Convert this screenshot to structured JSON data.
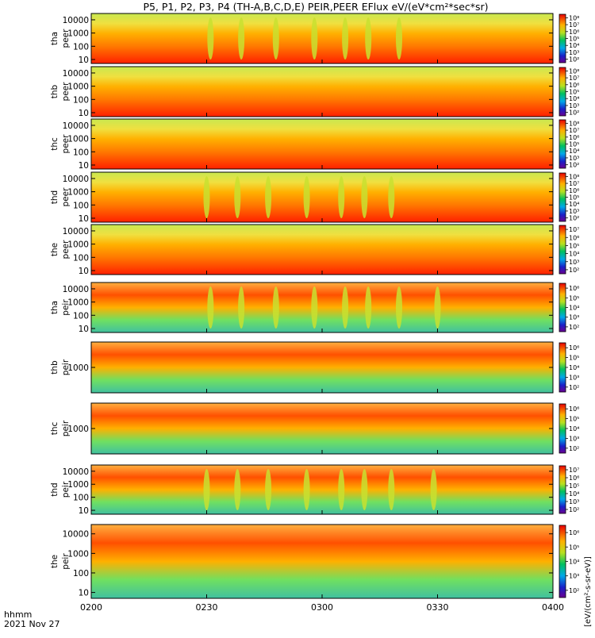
{
  "title": "P5, P1, P2, P3, P4 (TH-A,B,C,D,E) PEIR,PEER EFlux eV/(eV*cm²*sec*sr)",
  "footer": {
    "time_label": "hhmm",
    "date_label": "2021 Nov 27"
  },
  "colorbar_unit": "[eV/(cm²-s-sr-eV)]",
  "chart_data": {
    "type": "heatmap",
    "x_axis": {
      "range": [
        "0200",
        "0400"
      ],
      "ticks": [
        "0200",
        "0230",
        "0300",
        "0330",
        "0400"
      ],
      "label": "hhmm"
    },
    "y_scale": "log",
    "y_range_eV": [
      5,
      30000
    ],
    "color_scale": "log",
    "color_map": "rainbow",
    "panels": [
      {
        "probe": "tha",
        "species": "peer",
        "label_line1": "tha",
        "label_line2": "peer",
        "y_ticks": [
          "10",
          "100",
          "1000",
          "10000"
        ],
        "cbar_ticks": [
          "10²",
          "10³",
          "10⁴",
          "10⁵",
          "10⁶",
          "10⁷",
          "10⁸"
        ],
        "dips": [
          "0231",
          "0239",
          "0248",
          "0258",
          "0306",
          "0312",
          "0320"
        ]
      },
      {
        "probe": "thb",
        "species": "peer",
        "label_line1": "thb",
        "label_line2": "peer",
        "y_ticks": [
          "10",
          "100",
          "1000",
          "10000"
        ],
        "cbar_ticks": [
          "10²",
          "10³",
          "10⁴",
          "10⁵",
          "10⁶",
          "10⁷",
          "10⁸"
        ],
        "dips": []
      },
      {
        "probe": "thc",
        "species": "peer",
        "label_line1": "thc",
        "label_line2": "peer",
        "y_ticks": [
          "10",
          "100",
          "1000",
          "10000"
        ],
        "cbar_ticks": [
          "10²",
          "10³",
          "10⁴",
          "10⁵",
          "10⁶",
          "10⁷",
          "10⁸"
        ],
        "dips": []
      },
      {
        "probe": "thd",
        "species": "peer",
        "label_line1": "thd",
        "label_line2": "peer",
        "y_ticks": [
          "10",
          "100",
          "1000",
          "10000"
        ],
        "cbar_ticks": [
          "10²",
          "10³",
          "10⁴",
          "10⁵",
          "10⁶",
          "10⁷",
          "10⁸"
        ],
        "dips": [
          "0230",
          "0238",
          "0246",
          "0256",
          "0305",
          "0311",
          "0318"
        ]
      },
      {
        "probe": "the",
        "species": "peer",
        "label_line1": "the",
        "label_line2": "peer",
        "y_ticks": [
          "10",
          "100",
          "1000",
          "10000"
        ],
        "cbar_ticks": [
          "10²",
          "10³",
          "10⁴",
          "10⁵",
          "10⁶",
          "10⁷"
        ],
        "dips": []
      },
      {
        "probe": "tha",
        "species": "peir",
        "label_line1": "tha",
        "label_line2": "peir",
        "y_ticks": [
          "10",
          "100",
          "1000",
          "10000"
        ],
        "cbar_ticks": [
          "10²",
          "10³",
          "10⁴",
          "10⁵",
          "10⁶"
        ],
        "dips": [
          "0231",
          "0239",
          "0248",
          "0258",
          "0306",
          "0312",
          "0320",
          "0330"
        ]
      },
      {
        "probe": "thb",
        "species": "peir",
        "label_line1": "thb",
        "label_line2": "peir",
        "y_ticks": [
          "1000"
        ],
        "cbar_ticks": [
          "10²",
          "10³",
          "10⁴",
          "10⁵",
          "10⁶"
        ],
        "dips": []
      },
      {
        "probe": "thc",
        "species": "peir",
        "label_line1": "thc",
        "label_line2": "peir",
        "y_ticks": [
          "1000"
        ],
        "cbar_ticks": [
          "10²",
          "10³",
          "10⁴",
          "10⁵",
          "10⁶"
        ],
        "dips": []
      },
      {
        "probe": "thd",
        "species": "peir",
        "label_line1": "thd",
        "label_line2": "peir",
        "y_ticks": [
          "10",
          "100",
          "1000",
          "10000"
        ],
        "cbar_ticks": [
          "10²",
          "10³",
          "10⁴",
          "10⁵",
          "10⁶",
          "10⁷"
        ],
        "dips": [
          "0230",
          "0238",
          "0246",
          "0256",
          "0305",
          "0311",
          "0318",
          "0329"
        ]
      },
      {
        "probe": "the",
        "species": "peir",
        "label_line1": "the",
        "label_line2": "peir",
        "y_ticks": [
          "10",
          "100",
          "1000",
          "10000"
        ],
        "cbar_ticks": [
          "10²",
          "10³",
          "10⁴",
          "10⁵",
          "10⁶"
        ],
        "dips": []
      }
    ]
  }
}
